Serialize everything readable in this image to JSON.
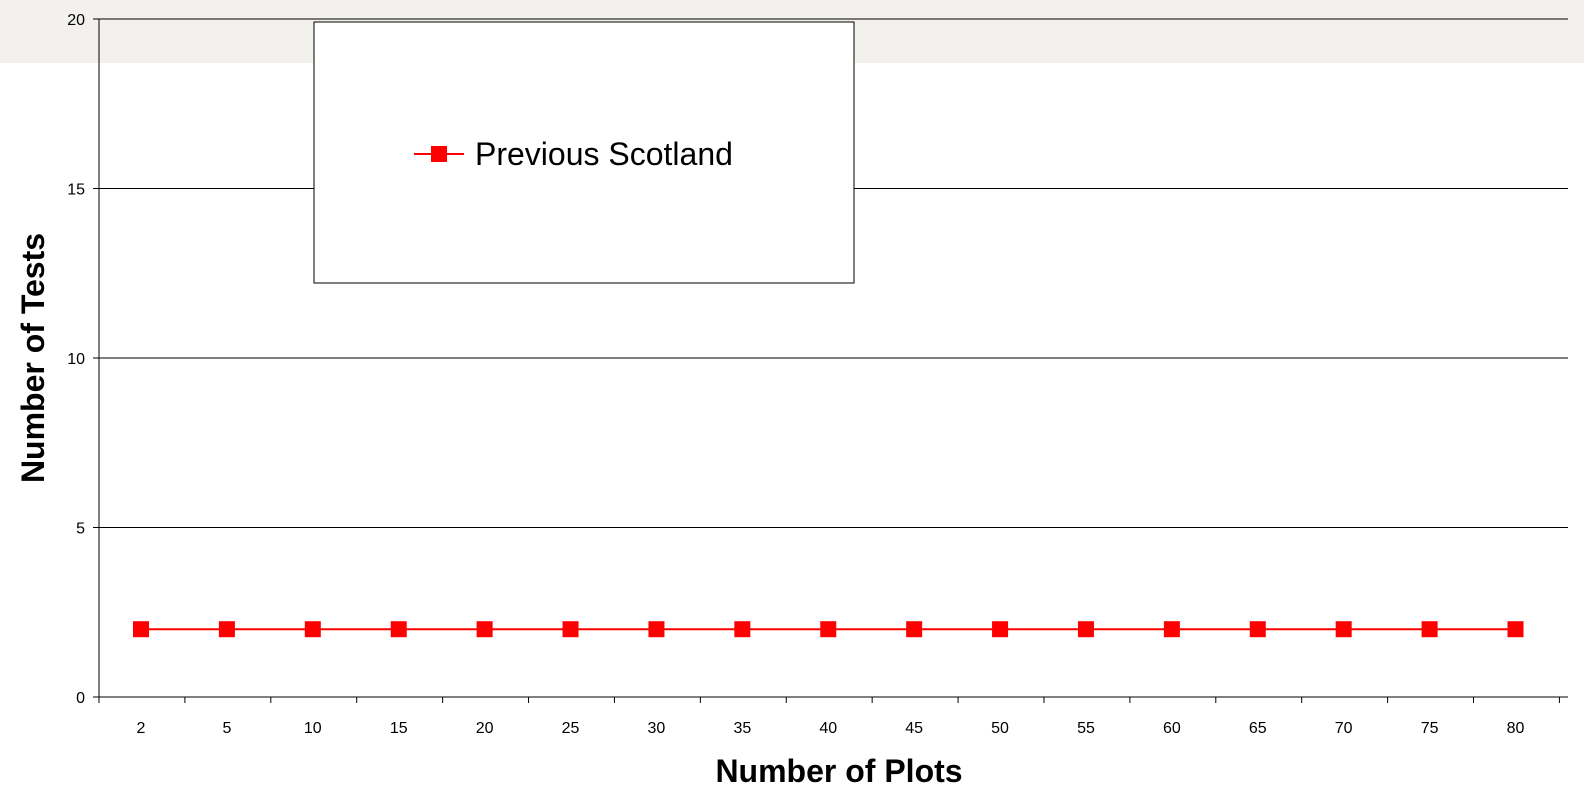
{
  "chart_data": {
    "type": "line",
    "title": "",
    "xlabel": "Number of Plots",
    "ylabel": "Number of Tests",
    "categories": [
      "2",
      "5",
      "10",
      "15",
      "20",
      "25",
      "30",
      "35",
      "40",
      "45",
      "50",
      "55",
      "60",
      "65",
      "70",
      "75",
      "80"
    ],
    "ylim": [
      0,
      20
    ],
    "yticks": [
      "0",
      "5",
      "10",
      "15",
      "20"
    ],
    "grid": "horizontal",
    "legend_position": "top-left",
    "series": [
      {
        "name": "Previous Scotland",
        "values": [
          2,
          2,
          2,
          2,
          2,
          2,
          2,
          2,
          2,
          2,
          2,
          2,
          2,
          2,
          2,
          2,
          2
        ],
        "color": "#ff0000",
        "marker": "square"
      }
    ]
  }
}
